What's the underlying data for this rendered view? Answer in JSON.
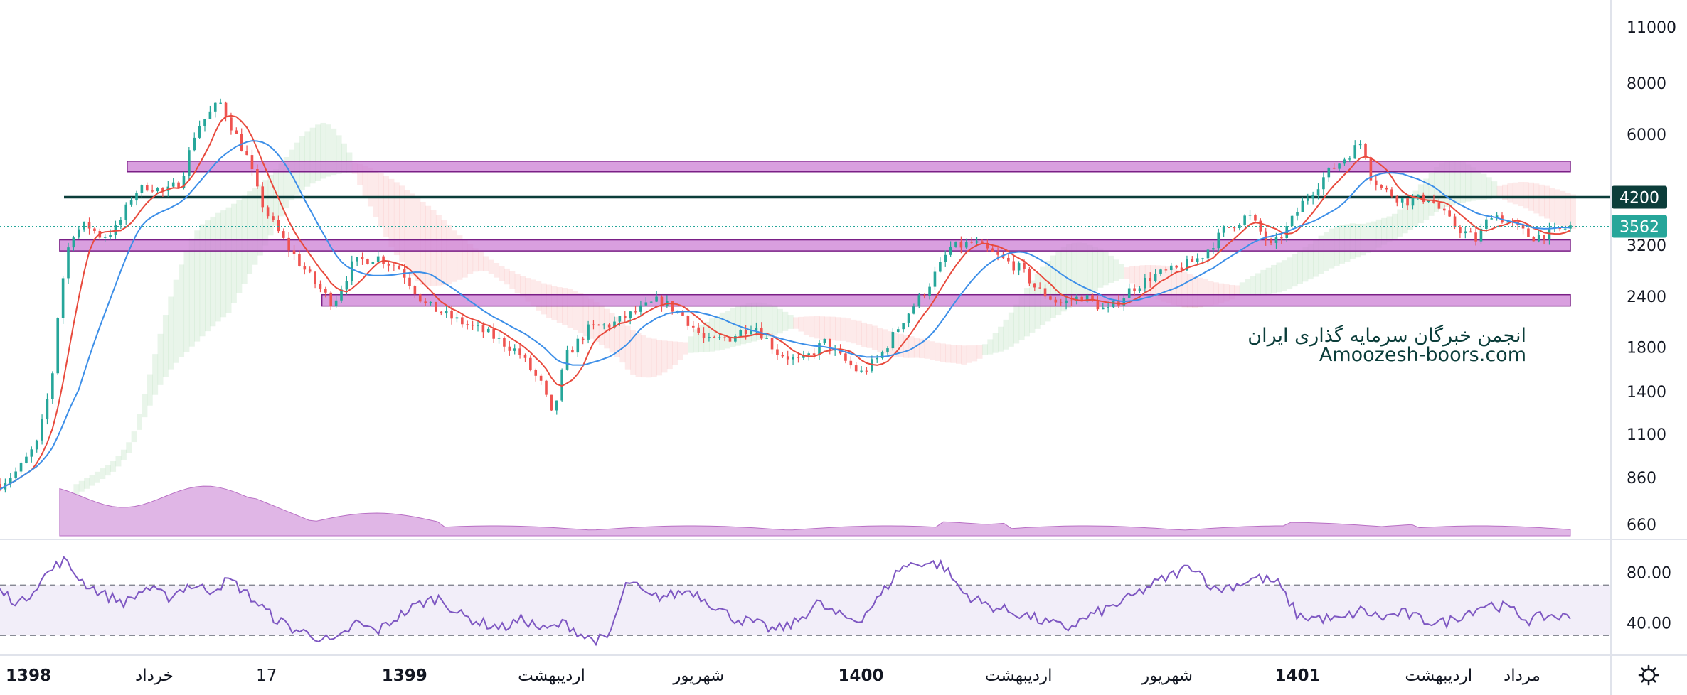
{
  "chart_data": {
    "type": "candlestick",
    "price_scale": {
      "scale": "log",
      "ylim": [
        600,
        12000
      ],
      "ticks": [
        11000,
        8000,
        6000,
        4200,
        3200,
        2400,
        1800,
        1400,
        1100,
        860,
        660
      ],
      "tick_labels": [
        "11000",
        "8000",
        "6000",
        "",
        "3200",
        "2400",
        "1800",
        "1400",
        "1100",
        "860",
        "660"
      ]
    },
    "price_labels": [
      {
        "value": 4200,
        "text": "4200",
        "color": "#0b3d3a"
      },
      {
        "value": 3562,
        "text": "3562",
        "color": "#26a69a"
      }
    ],
    "horizontal_line": {
      "value": 4200,
      "color": "#0b3d3a"
    },
    "last_price": 3562,
    "support_resistance_zones": [
      {
        "x_start": 0.081,
        "x_end": 1.0,
        "low": 4850,
        "high": 5150,
        "color": "#cc7fd4"
      },
      {
        "x_start": 0.038,
        "x_end": 1.0,
        "low": 3100,
        "high": 3300,
        "color": "#cc7fd4"
      },
      {
        "x_start": 0.205,
        "x_end": 1.0,
        "low": 2270,
        "high": 2420,
        "color": "#cc7fd4"
      }
    ],
    "close_series": [
      [
        0.0,
        830
      ],
      [
        0.012,
        900
      ],
      [
        0.024,
        1050
      ],
      [
        0.033,
        1500
      ],
      [
        0.038,
        2400
      ],
      [
        0.045,
        3400
      ],
      [
        0.055,
        3600
      ],
      [
        0.065,
        3350
      ],
      [
        0.075,
        3550
      ],
      [
        0.085,
        4300
      ],
      [
        0.095,
        4500
      ],
      [
        0.105,
        4300
      ],
      [
        0.115,
        4600
      ],
      [
        0.125,
        6200
      ],
      [
        0.14,
        7200
      ],
      [
        0.148,
        6200
      ],
      [
        0.158,
        5200
      ],
      [
        0.165,
        4200
      ],
      [
        0.172,
        3700
      ],
      [
        0.185,
        3100
      ],
      [
        0.2,
        2600
      ],
      [
        0.212,
        2300
      ],
      [
        0.225,
        2900
      ],
      [
        0.24,
        3000
      ],
      [
        0.255,
        2800
      ],
      [
        0.27,
        2300
      ],
      [
        0.29,
        2100
      ],
      [
        0.31,
        1950
      ],
      [
        0.33,
        1750
      ],
      [
        0.345,
        1450
      ],
      [
        0.352,
        1200
      ],
      [
        0.36,
        1700
      ],
      [
        0.375,
        2000
      ],
      [
        0.39,
        2050
      ],
      [
        0.405,
        2200
      ],
      [
        0.42,
        2350
      ],
      [
        0.435,
        2150
      ],
      [
        0.45,
        1850
      ],
      [
        0.465,
        1900
      ],
      [
        0.48,
        2050
      ],
      [
        0.495,
        1750
      ],
      [
        0.51,
        1650
      ],
      [
        0.525,
        1850
      ],
      [
        0.535,
        1700
      ],
      [
        0.548,
        1550
      ],
      [
        0.56,
        1700
      ],
      [
        0.575,
        2100
      ],
      [
        0.59,
        2500
      ],
      [
        0.605,
        3150
      ],
      [
        0.62,
        3250
      ],
      [
        0.635,
        3000
      ],
      [
        0.65,
        2800
      ],
      [
        0.66,
        2500
      ],
      [
        0.675,
        2300
      ],
      [
        0.69,
        2400
      ],
      [
        0.705,
        2200
      ],
      [
        0.72,
        2500
      ],
      [
        0.735,
        2700
      ],
      [
        0.75,
        2800
      ],
      [
        0.765,
        3000
      ],
      [
        0.78,
        3500
      ],
      [
        0.795,
        3800
      ],
      [
        0.81,
        3150
      ],
      [
        0.82,
        3550
      ],
      [
        0.83,
        4100
      ],
      [
        0.845,
        4800
      ],
      [
        0.86,
        5400
      ],
      [
        0.868,
        5800
      ],
      [
        0.872,
        4800
      ],
      [
        0.88,
        4400
      ],
      [
        0.895,
        4100
      ],
      [
        0.91,
        4200
      ],
      [
        0.925,
        3600
      ],
      [
        0.94,
        3300
      ],
      [
        0.95,
        3850
      ],
      [
        0.965,
        3550
      ],
      [
        0.975,
        3350
      ],
      [
        0.99,
        3450
      ],
      [
        1.0,
        3562
      ]
    ],
    "indicators": [
      {
        "type": "moving-average",
        "color": "#e84a3d"
      },
      {
        "type": "moving-average",
        "color": "#3d8fe8"
      }
    ],
    "volume": {
      "type": "area",
      "color": "#cf8fd8"
    },
    "rsi": {
      "ylim": [
        20,
        100
      ],
      "band": [
        30,
        70
      ],
      "ticks": [
        80,
        40
      ],
      "tick_labels": [
        "80.00",
        "40.00"
      ],
      "color": "#7e57c2",
      "values": [
        65,
        55,
        75,
        90,
        72,
        62,
        56,
        68,
        60,
        70,
        66,
        74,
        60,
        45,
        35,
        30,
        24,
        40,
        33,
        45,
        55,
        60,
        46,
        40,
        36,
        43,
        34,
        40,
        28,
        26,
        74,
        60,
        62,
        66,
        55,
        44,
        40,
        34,
        40,
        56,
        46,
        42,
        60,
        84,
        88,
        86,
        64,
        55,
        50,
        46,
        40,
        36,
        45,
        52,
        60,
        70,
        78,
        86,
        66,
        70,
        76,
        72,
        45,
        44,
        42,
        50,
        44,
        48,
        42,
        40,
        48,
        55,
        52,
        42,
        46,
        44
      ]
    },
    "time_labels": [
      {
        "text": "1398",
        "pos": 0.0,
        "bold": true
      },
      {
        "text": "خرداد",
        "pos": 0.098,
        "bold": false
      },
      {
        "text": "17",
        "pos": 0.172,
        "bold": false
      },
      {
        "text": "1399",
        "pos": 0.263,
        "bold": true
      },
      {
        "text": "اردیبهشت",
        "pos": 0.36,
        "bold": false
      },
      {
        "text": "شهریور",
        "pos": 0.457,
        "bold": false
      },
      {
        "text": "1400",
        "pos": 0.564,
        "bold": true
      },
      {
        "text": "اردیبهشت",
        "pos": 0.668,
        "bold": false
      },
      {
        "text": "شهریور",
        "pos": 0.766,
        "bold": false
      },
      {
        "text": "1401",
        "pos": 0.852,
        "bold": true
      },
      {
        "text": "اردیبهشت",
        "pos": 0.945,
        "bold": false
      },
      {
        "text": "مرداد",
        "pos": 1.0,
        "bold": false
      }
    ],
    "watermark": [
      "انجمن خبرگان سرمایه گذاری ایران",
      "Amoozesh-boors.com"
    ]
  },
  "ui": {
    "settings_icon": "gear-icon"
  }
}
